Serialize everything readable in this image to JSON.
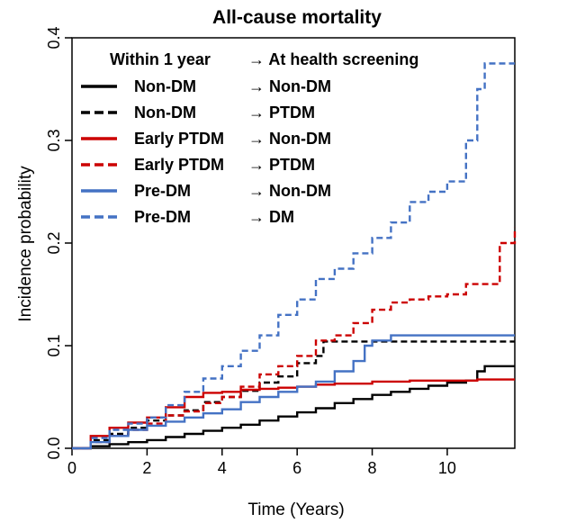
{
  "chart_data": {
    "type": "line",
    "title": "All-cause mortality",
    "xlabel": "Time (Years)",
    "ylabel": "Incidence probability",
    "xlim": [
      0,
      11.8
    ],
    "ylim": [
      0,
      0.4
    ],
    "x_ticks": [
      0,
      2,
      4,
      6,
      8,
      10
    ],
    "x_tick_labels": [
      "0",
      "2",
      "4",
      "6",
      "8",
      "10"
    ],
    "y_ticks": [
      0,
      0.1,
      0.2,
      0.3,
      0.4
    ],
    "y_tick_labels": [
      "0.0",
      "0.1",
      "0.2",
      "0.3",
      "0.4"
    ],
    "grid": false,
    "legend": {
      "placement": "top-left",
      "header_left": "Within 1 year",
      "header_right": "→ At health screening",
      "rows": [
        {
          "left": "Non-DM",
          "right": "→ Non-DM"
        },
        {
          "left": "Non-DM",
          "right": "→ PTDM"
        },
        {
          "left": "Early PTDM",
          "right": "→ Non-DM"
        },
        {
          "left": "Early PTDM",
          "right": "→ PTDM"
        },
        {
          "left": "Pre-DM",
          "right": "→ Non-DM"
        },
        {
          "left": "Pre-DM",
          "right": "→ DM"
        }
      ]
    },
    "series": [
      {
        "color": "#000000",
        "dash": "solid",
        "x": [
          0,
          0.5,
          1,
          1.5,
          2,
          2.5,
          3,
          3.5,
          4,
          4.5,
          5,
          5.5,
          6,
          6.5,
          7,
          7.5,
          8,
          8.5,
          9,
          9.5,
          10,
          10.5,
          10.8,
          11,
          11.8
        ],
        "y": [
          0,
          0.002,
          0.004,
          0.006,
          0.008,
          0.011,
          0.014,
          0.017,
          0.02,
          0.023,
          0.027,
          0.031,
          0.035,
          0.039,
          0.044,
          0.048,
          0.052,
          0.055,
          0.058,
          0.061,
          0.064,
          0.066,
          0.075,
          0.08,
          0.08
        ]
      },
      {
        "color": "#000000",
        "dash": "dashed",
        "x": [
          0,
          0.5,
          1,
          1.5,
          2,
          2.5,
          3,
          3.5,
          4,
          4.5,
          5,
          5.5,
          6,
          6.5,
          6.7,
          7,
          8,
          9,
          10,
          11,
          11.8
        ],
        "y": [
          0,
          0.008,
          0.014,
          0.02,
          0.027,
          0.032,
          0.037,
          0.045,
          0.05,
          0.056,
          0.064,
          0.07,
          0.083,
          0.09,
          0.104,
          0.104,
          0.104,
          0.104,
          0.104,
          0.104,
          0.104
        ]
      },
      {
        "color": "#cc0000",
        "dash": "solid",
        "x": [
          0,
          0.5,
          1,
          1.5,
          2,
          2.5,
          3,
          3.5,
          4,
          4.5,
          5,
          5.5,
          6,
          6.5,
          7,
          8,
          9,
          10,
          10.8,
          11.8
        ],
        "y": [
          0,
          0.012,
          0.02,
          0.025,
          0.03,
          0.04,
          0.05,
          0.054,
          0.055,
          0.057,
          0.058,
          0.059,
          0.06,
          0.062,
          0.063,
          0.065,
          0.066,
          0.066,
          0.067,
          0.067
        ]
      },
      {
        "color": "#cc0000",
        "dash": "dashed",
        "x": [
          0,
          0.5,
          1,
          1.5,
          2,
          2.5,
          3,
          3.5,
          4,
          4.5,
          5,
          5.5,
          6,
          6.5,
          7,
          7.5,
          8,
          8.5,
          9,
          9.5,
          10,
          10.5,
          11,
          11.4,
          11.8
        ],
        "y": [
          0,
          0.006,
          0.012,
          0.018,
          0.024,
          0.032,
          0.036,
          0.044,
          0.05,
          0.06,
          0.072,
          0.08,
          0.09,
          0.105,
          0.11,
          0.122,
          0.135,
          0.142,
          0.145,
          0.148,
          0.15,
          0.16,
          0.16,
          0.2,
          0.215
        ]
      },
      {
        "color": "#4472c4",
        "dash": "solid",
        "x": [
          0,
          0.5,
          1,
          1.5,
          2,
          2.5,
          3,
          3.5,
          4,
          4.5,
          5,
          5.5,
          6,
          6.5,
          7,
          7.5,
          7.8,
          8,
          8.5,
          9,
          10,
          11,
          11.8
        ],
        "y": [
          0,
          0.006,
          0.012,
          0.018,
          0.022,
          0.026,
          0.03,
          0.034,
          0.038,
          0.045,
          0.05,
          0.055,
          0.06,
          0.065,
          0.075,
          0.085,
          0.1,
          0.105,
          0.11,
          0.11,
          0.11,
          0.11,
          0.11
        ]
      },
      {
        "color": "#4472c4",
        "dash": "dashed",
        "x": [
          0,
          0.5,
          1,
          1.5,
          2,
          2.5,
          3,
          3.5,
          4,
          4.5,
          5,
          5.5,
          6,
          6.5,
          7,
          7.5,
          8,
          8.5,
          9,
          9.5,
          10,
          10.5,
          10.8,
          11,
          11.8
        ],
        "y": [
          0,
          0.01,
          0.018,
          0.024,
          0.03,
          0.042,
          0.055,
          0.068,
          0.08,
          0.095,
          0.11,
          0.13,
          0.145,
          0.165,
          0.175,
          0.19,
          0.205,
          0.22,
          0.24,
          0.25,
          0.26,
          0.3,
          0.35,
          0.375,
          0.375
        ]
      }
    ]
  }
}
